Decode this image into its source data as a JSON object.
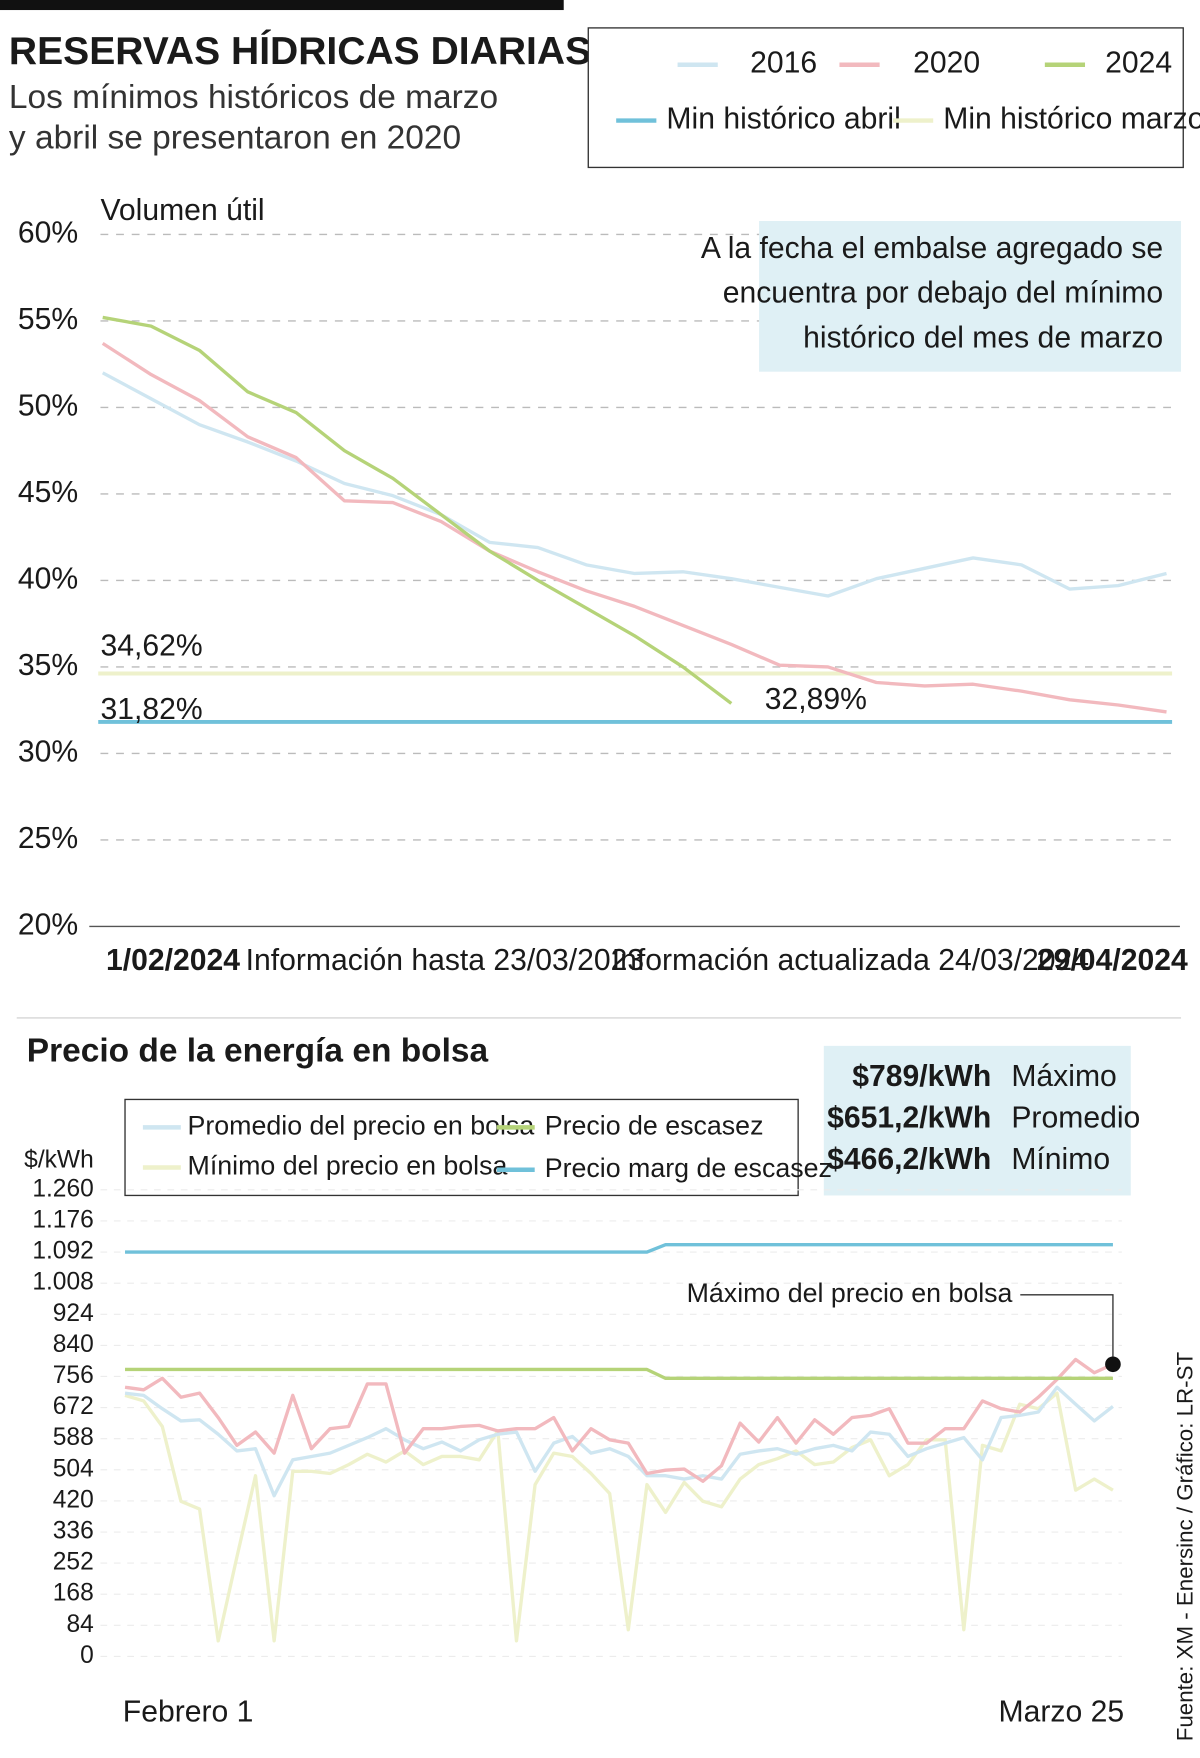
{
  "header": {
    "title": "RESERVAS HÍDRICAS DIARIAS",
    "subtitle": [
      "Los mínimos históricos de marzo",
      "y abril se presentaron en 2020"
    ]
  },
  "source": "Fuente: XM - Enersinc / Gráfico: LR-ST",
  "chart_data": [
    {
      "type": "line",
      "y_label": "Volumen útil",
      "ylim": [
        20,
        60
      ],
      "yticks": [
        {
          "value": 20,
          "label": "20%"
        },
        {
          "value": 25,
          "label": "25%"
        },
        {
          "value": 30,
          "label": "30%"
        },
        {
          "value": 35,
          "label": "35%"
        },
        {
          "value": 40,
          "label": "40%"
        },
        {
          "value": 45,
          "label": "45%"
        },
        {
          "value": 50,
          "label": "50%"
        },
        {
          "value": 55,
          "label": "55%"
        },
        {
          "value": 60,
          "label": "60%"
        }
      ],
      "grid": true,
      "x_labels": [
        "1/02/2024",
        "Información hasta 23/03/2023",
        "Información actualizada 24/03/2024",
        "29/04/2024"
      ],
      "annotation": [
        "A la fecha el embalse agregado se",
        "encuentra por debajo del mínimo",
        "histórico del mes de marzo"
      ],
      "series": [
        {
          "name": "2016",
          "color": "#cfe6f1",
          "values": [
            52.0,
            50.5,
            49.0,
            48.0,
            46.9,
            45.6,
            44.9,
            43.8,
            42.2,
            41.9,
            40.9,
            40.4,
            40.5,
            40.1,
            39.6,
            39.1,
            40.1,
            40.7,
            41.3,
            40.9,
            39.5,
            39.7,
            40.4
          ]
        },
        {
          "name": "2020",
          "color": "#f2b9be",
          "values": [
            53.7,
            51.9,
            50.4,
            48.3,
            47.1,
            44.6,
            44.5,
            43.4,
            41.7,
            40.5,
            39.4,
            38.5,
            37.4,
            36.3,
            35.1,
            35.0,
            34.1,
            33.9,
            34.0,
            33.6,
            33.1,
            32.8,
            32.4
          ]
        },
        {
          "name": "2024",
          "color": "#b5d378",
          "values": [
            55.2,
            54.7,
            53.3,
            50.9,
            49.7,
            47.5,
            45.9,
            43.8,
            41.7,
            40.0,
            38.4,
            36.8,
            35.0,
            32.89,
            null,
            null,
            null,
            null,
            null,
            null,
            null,
            null,
            null
          ],
          "value_labels": [
            null,
            null,
            null,
            null,
            null,
            null,
            null,
            null,
            null,
            null,
            null,
            null,
            null,
            "32,89%",
            null,
            null,
            null,
            null,
            null,
            null,
            null,
            null,
            null
          ]
        }
      ],
      "reference_lines": [
        {
          "name": "Min histórico abril",
          "color": "#70c1da",
          "value": 31.82,
          "value_label": "31,82%"
        },
        {
          "name": "Min histórico marzo",
          "color": "#eef1cb",
          "value": 34.62,
          "value_label": "34,62%"
        }
      ]
    },
    {
      "type": "line",
      "title": "Precio de la energía en bolsa",
      "y_label": "$/kWh",
      "ylim": [
        0,
        1260
      ],
      "yticks": [
        0,
        84,
        168,
        252,
        336,
        420,
        504,
        588,
        672,
        756,
        840,
        924,
        {
          "value": 1008,
          "label": "1.008"
        },
        {
          "value": 1092,
          "label": "1.092"
        },
        {
          "value": 1176,
          "label": "1.176"
        },
        {
          "value": 1260,
          "label": "1.260"
        }
      ],
      "grid": true,
      "x_labels": [
        "Febrero 1",
        "Marzo 25"
      ],
      "summary": [
        {
          "value": "$789/kWh",
          "label": "Máximo"
        },
        {
          "value": "$651,2/kWh",
          "label": "Promedio"
        },
        {
          "value": "$466,2/kWh",
          "label": "Mínimo"
        }
      ],
      "series": [
        {
          "name": "Promedio del precio en bolsa",
          "color": "#cfe6f1",
          "values": [
            711,
            705,
            669,
            636,
            639,
            600,
            555,
            561,
            434,
            531,
            540,
            549,
            570,
            591,
            615,
            585,
            561,
            579,
            555,
            585,
            600,
            606,
            500,
            576,
            594,
            549,
            561,
            540,
            488,
            488,
            479,
            488,
            479,
            546,
            555,
            561,
            546,
            561,
            570,
            555,
            606,
            600,
            540,
            561,
            576,
            591,
            531,
            645,
            651,
            660,
            727,
            681,
            636,
            675
          ]
        },
        {
          "name": "Mínimo del precio en bolsa",
          "color": "#eef1cb",
          "values": [
            705,
            690,
            621,
            419,
            398,
            42,
            268,
            488,
            42,
            500,
            500,
            494,
            518,
            546,
            525,
            555,
            518,
            540,
            540,
            531,
            609,
            42,
            464,
            549,
            540,
            494,
            440,
            72,
            464,
            389,
            470,
            419,
            404,
            479,
            518,
            534,
            555,
            518,
            525,
            564,
            585,
            488,
            518,
            585,
            585,
            72,
            570,
            555,
            681,
            669,
            711,
            449,
            479,
            449
          ]
        },
        {
          "name": "Precio de escasez",
          "color": "#b5d378",
          "values": [
            775,
            775,
            775,
            775,
            775,
            775,
            775,
            775,
            775,
            775,
            775,
            775,
            775,
            775,
            775,
            775,
            775,
            775,
            775,
            775,
            775,
            775,
            775,
            775,
            775,
            775,
            775,
            775,
            775,
            751,
            751,
            751,
            751,
            751,
            751,
            751,
            751,
            751,
            751,
            751,
            751,
            751,
            751,
            751,
            751,
            751,
            751,
            751,
            751,
            751,
            751,
            751,
            751,
            751
          ]
        },
        {
          "name": "Precio marg de escasez",
          "color": "#70c1da",
          "values": [
            1092,
            1092,
            1092,
            1092,
            1092,
            1092,
            1092,
            1092,
            1092,
            1092,
            1092,
            1092,
            1092,
            1092,
            1092,
            1092,
            1092,
            1092,
            1092,
            1092,
            1092,
            1092,
            1092,
            1092,
            1092,
            1092,
            1092,
            1092,
            1092,
            1112,
            1112,
            1112,
            1112,
            1112,
            1112,
            1112,
            1112,
            1112,
            1112,
            1112,
            1112,
            1112,
            1112,
            1112,
            1112,
            1112,
            1112,
            1112,
            1112,
            1112,
            1112,
            1112,
            1112,
            1112
          ]
        },
        {
          "name": "Máximo del precio en bolsa",
          "color": "#f2b9be",
          "values": [
            727,
            720,
            751,
            700,
            711,
            645,
            570,
            606,
            549,
            705,
            561,
            615,
            621,
            736,
            736,
            549,
            615,
            615,
            621,
            624,
            609,
            615,
            615,
            645,
            555,
            615,
            585,
            576,
            494,
            503,
            506,
            473,
            515,
            630,
            579,
            645,
            576,
            639,
            600,
            645,
            651,
            669,
            576,
            576,
            615,
            615,
            690,
            669,
            660,
            700,
            748,
            802,
            766,
            789
          ]
        }
      ]
    }
  ]
}
